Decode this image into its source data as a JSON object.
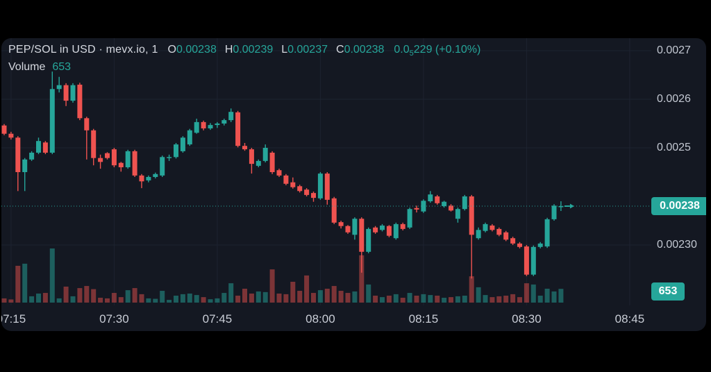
{
  "header": {
    "symbol_title": "PEP/SOL in USD · mevx.io, 1",
    "ohlc": {
      "o_label": "O",
      "o": "0.00238",
      "h_label": "H",
      "h": "0.00239",
      "l_label": "L",
      "l": "0.00237",
      "c_label": "C",
      "c": "0.00238"
    },
    "change_prefix": "0.0",
    "change_sub": "5",
    "change_suffix": "229 (+0.10%)",
    "volume_label": "Volume",
    "volume_value": "653"
  },
  "colors": {
    "up": "#26a69a",
    "down": "#ef5350",
    "vol_up": "rgba(38,166,154,0.50)",
    "vol_down": "rgba(239,83,80,0.48)",
    "panel_bg": "#141822",
    "grid": "#1d2330",
    "price_line": "#26a69a",
    "badge_bg": "#26a69a",
    "axis_text": "#c3c8d2",
    "time_text": "#c9cdd6"
  },
  "price_axis": {
    "labels": [
      {
        "text": "0.0027",
        "value": 0.0027
      },
      {
        "text": "0.0026",
        "value": 0.0026
      },
      {
        "text": "0.0025",
        "value": 0.0025
      },
      {
        "text": "0.00230",
        "value": 0.0023
      }
    ],
    "current_badge": {
      "text": "0.00238",
      "value": 0.00238
    },
    "volume_badge": {
      "text": "653"
    }
  },
  "time_axis": {
    "labels": [
      "07:15",
      "07:30",
      "07:45",
      "08:00",
      "08:15",
      "08:30",
      "08:45"
    ]
  },
  "chart_data": {
    "type": "candlestick_with_volume",
    "symbol": "PEP/SOL in USD",
    "source": "mevx.io",
    "interval": "1",
    "current": {
      "open": 0.00238,
      "high": 0.00239,
      "low": 0.00237,
      "close": 0.00238,
      "change": "+0.10%",
      "volume": 653
    },
    "price_ticks": [
      0.0027,
      0.0026,
      0.0025,
      0.00238,
      0.0023
    ],
    "time_ticks": [
      "07:15",
      "07:30",
      "07:45",
      "08:00",
      "08:15",
      "08:30",
      "08:45"
    ],
    "last_price": 0.00238,
    "legend_position": "top-left",
    "grid": true,
    "columns": [
      "time",
      "open",
      "high",
      "low",
      "close",
      "volume"
    ],
    "candles": [
      [
        "07:14",
        0.002546,
        0.002549,
        0.002526,
        0.002529,
        200
      ],
      [
        "07:15",
        0.002529,
        0.002533,
        0.002517,
        0.002521,
        150
      ],
      [
        "07:16",
        0.002521,
        0.002524,
        0.002411,
        0.00245,
        1750
      ],
      [
        "07:17",
        0.00245,
        0.002479,
        0.002411,
        0.002476,
        1850
      ],
      [
        "07:18",
        0.002476,
        0.002493,
        0.002473,
        0.00249,
        300
      ],
      [
        "07:19",
        0.00249,
        0.002521,
        0.002487,
        0.002514,
        430
      ],
      [
        "07:20",
        0.002511,
        0.002514,
        0.002487,
        0.00249,
        460
      ],
      [
        "07:21",
        0.00249,
        0.002657,
        0.002487,
        0.002621,
        2574
      ],
      [
        "07:22",
        0.002621,
        0.002646,
        0.002614,
        0.002629,
        200
      ],
      [
        "07:23",
        0.002629,
        0.002633,
        0.002586,
        0.002597,
        760
      ],
      [
        "07:24",
        0.002597,
        0.002633,
        0.002593,
        0.002629,
        300
      ],
      [
        "07:25",
        0.00263,
        0.002634,
        0.002557,
        0.002561,
        690
      ],
      [
        "07:26",
        0.002561,
        0.002564,
        0.002476,
        0.002536,
        790
      ],
      [
        "07:27",
        0.002536,
        0.002539,
        0.002464,
        0.002479,
        640
      ],
      [
        "07:28",
        0.002479,
        0.002486,
        0.002457,
        0.002471,
        230
      ],
      [
        "07:29",
        0.002489,
        0.002491,
        0.002476,
        0.002479,
        200
      ],
      [
        "07:30",
        0.002497,
        0.0025,
        0.00246,
        0.002464,
        460
      ],
      [
        "07:31",
        0.002469,
        0.002471,
        0.002451,
        0.00246,
        260
      ],
      [
        "07:32",
        0.00246,
        0.002496,
        0.002457,
        0.002493,
        590
      ],
      [
        "07:33",
        0.002493,
        0.002496,
        0.00244,
        0.002443,
        690
      ],
      [
        "07:34",
        0.002443,
        0.002446,
        0.002417,
        0.002431,
        400
      ],
      [
        "07:35",
        0.002433,
        0.002443,
        0.002429,
        0.00244,
        200
      ],
      [
        "07:36",
        0.00244,
        0.002449,
        0.002437,
        0.002446,
        180
      ],
      [
        "07:37",
        0.002443,
        0.002484,
        0.00244,
        0.002481,
        560
      ],
      [
        "07:38",
        0.002479,
        0.002486,
        0.002473,
        0.002481,
        130
      ],
      [
        "07:39",
        0.002481,
        0.00251,
        0.002478,
        0.002507,
        330
      ],
      [
        "07:40",
        0.002493,
        0.002524,
        0.00249,
        0.002521,
        400
      ],
      [
        "07:41",
        0.002507,
        0.002539,
        0.002504,
        0.002536,
        430
      ],
      [
        "07:42",
        0.002531,
        0.00256,
        0.002529,
        0.002553,
        360
      ],
      [
        "07:43",
        0.002553,
        0.002556,
        0.002536,
        0.00254,
        260
      ],
      [
        "07:44",
        0.00254,
        0.002551,
        0.002537,
        0.002547,
        160
      ],
      [
        "07:45",
        0.002547,
        0.002553,
        0.002541,
        0.00255,
        200
      ],
      [
        "07:46",
        0.00255,
        0.00256,
        0.002546,
        0.002557,
        460
      ],
      [
        "07:47",
        0.002557,
        0.002581,
        0.002553,
        0.002574,
        920
      ],
      [
        "07:48",
        0.002573,
        0.002576,
        0.002501,
        0.002504,
        330
      ],
      [
        "07:49",
        0.002504,
        0.00251,
        0.002494,
        0.002497,
        660
      ],
      [
        "07:50",
        0.002497,
        0.0025,
        0.002447,
        0.002467,
        430
      ],
      [
        "07:51",
        0.002463,
        0.002476,
        0.00246,
        0.002473,
        530
      ],
      [
        "07:52",
        0.002473,
        0.002507,
        0.00247,
        0.0025,
        500
      ],
      [
        "07:53",
        0.00249,
        0.002493,
        0.002446,
        0.00245,
        1580
      ],
      [
        "07:54",
        0.002454,
        0.002457,
        0.00244,
        0.002443,
        430
      ],
      [
        "07:55",
        0.002443,
        0.002446,
        0.002423,
        0.002426,
        400
      ],
      [
        "07:56",
        0.002429,
        0.002439,
        0.002416,
        0.002419,
        990
      ],
      [
        "07:57",
        0.002421,
        0.002424,
        0.002408,
        0.002411,
        560
      ],
      [
        "07:58",
        0.002414,
        0.002417,
        0.0024,
        0.002403,
        1290
      ],
      [
        "07:59",
        0.002407,
        0.00241,
        0.002389,
        0.002397,
        460
      ],
      [
        "08:00",
        0.002396,
        0.00245,
        0.002393,
        0.002447,
        590
      ],
      [
        "08:01",
        0.002447,
        0.00245,
        0.002383,
        0.002393,
        660
      ],
      [
        "08:02",
        0.002396,
        0.002399,
        0.002343,
        0.002346,
        790
      ],
      [
        "08:03",
        0.002347,
        0.00235,
        0.002334,
        0.002339,
        560
      ],
      [
        "08:04",
        0.002339,
        0.002341,
        0.002323,
        0.002326,
        460
      ],
      [
        "08:05",
        0.002321,
        0.002357,
        0.002311,
        0.002354,
        530
      ],
      [
        "08:06",
        0.002354,
        0.002357,
        0.002243,
        0.002286,
        2250
      ],
      [
        "08:07",
        0.002286,
        0.002336,
        0.002283,
        0.002333,
        860
      ],
      [
        "08:08",
        0.002336,
        0.002339,
        0.002323,
        0.002326,
        330
      ],
      [
        "08:09",
        0.002331,
        0.002343,
        0.002328,
        0.00234,
        260
      ],
      [
        "08:10",
        0.002339,
        0.002341,
        0.002316,
        0.002319,
        330
      ],
      [
        "08:11",
        0.002314,
        0.002346,
        0.002311,
        0.002343,
        400
      ],
      [
        "08:12",
        0.002343,
        0.002346,
        0.00233,
        0.002333,
        230
      ],
      [
        "08:13",
        0.002336,
        0.002377,
        0.002333,
        0.002374,
        460
      ],
      [
        "08:14",
        0.002376,
        0.002381,
        0.002367,
        0.002373,
        330
      ],
      [
        "08:15",
        0.002369,
        0.002394,
        0.002366,
        0.002391,
        400
      ],
      [
        "08:16",
        0.00239,
        0.002411,
        0.002387,
        0.002404,
        360
      ],
      [
        "08:17",
        0.0024,
        0.002403,
        0.002383,
        0.002386,
        330
      ],
      [
        "08:18",
        0.00238,
        0.002391,
        0.002377,
        0.002389,
        230
      ],
      [
        "08:19",
        0.002381,
        0.002384,
        0.002369,
        0.002371,
        260
      ],
      [
        "08:20",
        0.002354,
        0.002377,
        0.002346,
        0.002374,
        300
      ],
      [
        "08:21",
        0.002374,
        0.002403,
        0.002371,
        0.0024,
        330
      ],
      [
        "08:22",
        0.0024,
        0.002403,
        0.002231,
        0.002321,
        1250
      ],
      [
        "08:23",
        0.002314,
        0.002336,
        0.002311,
        0.002331,
        730
      ],
      [
        "08:24",
        0.002329,
        0.002346,
        0.002326,
        0.002343,
        360
      ],
      [
        "08:25",
        0.00234,
        0.002343,
        0.002328,
        0.002331,
        260
      ],
      [
        "08:26",
        0.002333,
        0.002336,
        0.002318,
        0.002321,
        300
      ],
      [
        "08:27",
        0.002326,
        0.002329,
        0.002308,
        0.002311,
        330
      ],
      [
        "08:28",
        0.002314,
        0.002317,
        0.0023,
        0.002303,
        400
      ],
      [
        "08:29",
        0.002303,
        0.002306,
        0.002293,
        0.002296,
        260
      ],
      [
        "08:30",
        0.002297,
        0.0023,
        0.002236,
        0.002239,
        920
      ],
      [
        "08:31",
        0.002239,
        0.002299,
        0.002236,
        0.002296,
        860
      ],
      [
        "08:32",
        0.002296,
        0.002306,
        0.002293,
        0.002303,
        330
      ],
      [
        "08:33",
        0.002297,
        0.002356,
        0.002294,
        0.002353,
        660
      ],
      [
        "08:34",
        0.002353,
        0.002384,
        0.00235,
        0.002381,
        530
      ],
      [
        "08:35",
        0.00238,
        0.00239,
        0.00237,
        0.00238,
        653
      ]
    ]
  }
}
